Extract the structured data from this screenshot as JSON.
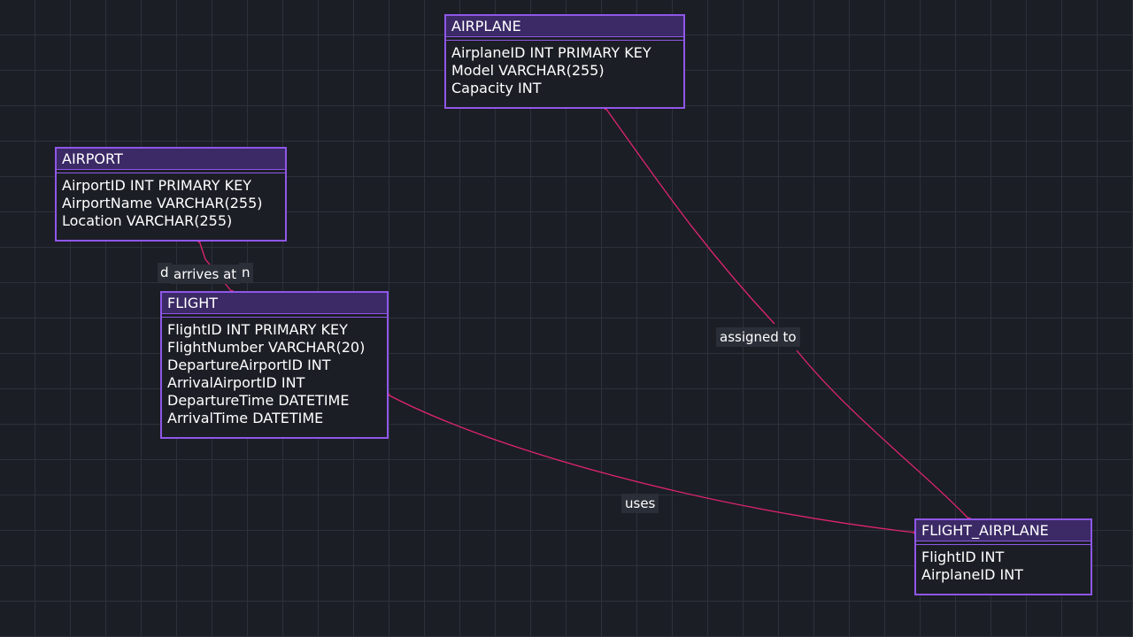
{
  "colors": {
    "background": "#1b1e25",
    "grid": "#2c313a",
    "entity_border": "#8f57e8",
    "entity_header": "#3b2a66",
    "edge": "#e0246f",
    "label_bg": "#2a2e37",
    "text": "#ffffff"
  },
  "entities": {
    "airplane": {
      "title": "AIRPLANE",
      "fields": [
        "AirplaneID INT PRIMARY KEY",
        "Model VARCHAR(255)",
        "Capacity INT"
      ]
    },
    "airport": {
      "title": "AIRPORT",
      "fields": [
        "AirportID INT PRIMARY KEY",
        "AirportName VARCHAR(255)",
        "Location VARCHAR(255)"
      ]
    },
    "flight": {
      "title": "FLIGHT",
      "fields": [
        "FlightID INT PRIMARY KEY",
        "FlightNumber VARCHAR(20)",
        "DepartureAirportID INT",
        "ArrivalAirportID INT",
        "DepartureTime DATETIME",
        "ArrivalTime DATETIME"
      ]
    },
    "flight_airplane": {
      "title": "FLIGHT_AIRPLANE",
      "fields": [
        "FlightID INT",
        "AirplaneID INT"
      ]
    }
  },
  "relationships": {
    "arrives_at": {
      "label": "arrives at",
      "from_cardinality": "d",
      "to_cardinality": "n"
    },
    "assigned_to": {
      "label": "assigned to"
    },
    "uses": {
      "label": "uses"
    }
  }
}
